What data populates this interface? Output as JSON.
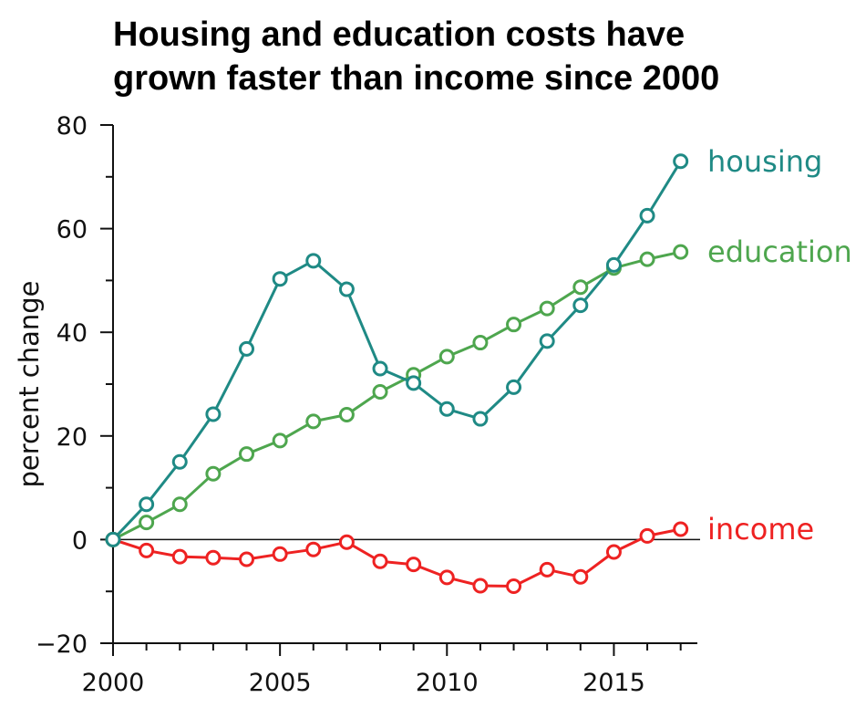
{
  "header": {
    "title_line1": "Housing and education costs have",
    "title_line2": "grown faster than income since 2000"
  },
  "chart_data": {
    "type": "line",
    "title": "Housing and education costs have grown faster than income since 2000",
    "xlabel": "",
    "ylabel": "percent change",
    "xlim": [
      2000,
      2017.5
    ],
    "ylim": [
      -20,
      80
    ],
    "x_ticks": [
      "2000",
      "2005",
      "2010",
      "2015"
    ],
    "y_ticks": [
      "80",
      "60",
      "40",
      "20",
      "0",
      "−20"
    ],
    "grid": false,
    "legend": "direct labels at line ends",
    "x": [
      2000,
      2001,
      2002,
      2003,
      2004,
      2005,
      2006,
      2007,
      2008,
      2009,
      2010,
      2011,
      2012,
      2013,
      2014,
      2015,
      2016,
      2017
    ],
    "series": [
      {
        "name": "housing",
        "color": "#1f8a85",
        "values": [
          0,
          6.8,
          15.0,
          24.2,
          36.8,
          50.3,
          53.8,
          48.3,
          33.0,
          30.2,
          25.2,
          23.3,
          29.4,
          38.3,
          45.2,
          53.0,
          62.5,
          73.0
        ]
      },
      {
        "name": "education",
        "color": "#4ea64e",
        "values": [
          0,
          3.3,
          6.8,
          12.7,
          16.5,
          19.1,
          22.8,
          24.1,
          28.5,
          31.8,
          35.3,
          38.0,
          41.5,
          44.6,
          48.7,
          52.4,
          54.1,
          55.5
        ]
      },
      {
        "name": "income",
        "color": "#ee2222",
        "values": [
          0,
          -2.1,
          -3.3,
          -3.5,
          -3.8,
          -2.8,
          -1.9,
          -0.5,
          -4.2,
          -4.8,
          -7.3,
          -8.9,
          -9.0,
          -5.8,
          -7.2,
          -2.4,
          0.7,
          2.0
        ]
      }
    ]
  }
}
